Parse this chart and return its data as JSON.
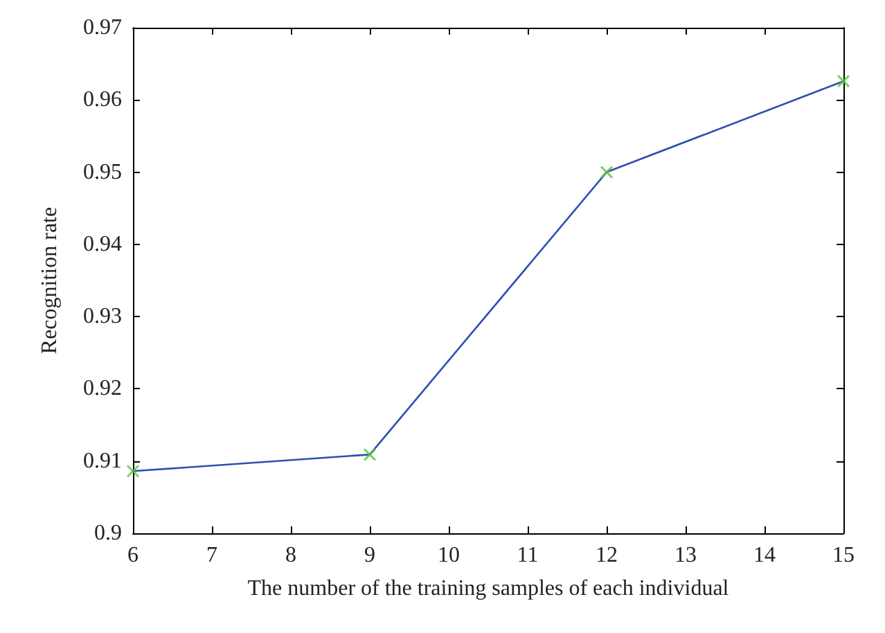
{
  "chart_data": {
    "type": "line",
    "xlabel": "The number of the training samples of each individual",
    "ylabel": "Recognition rate",
    "x": [
      6,
      9,
      12,
      15
    ],
    "series": [
      {
        "color": "#2e4fb0",
        "values": [
          0.9086,
          0.9109,
          0.95,
          0.9626
        ],
        "marker": "none"
      },
      {
        "type": "scatter",
        "color": "#5ac43a",
        "values": [
          0.9086,
          0.9109,
          0.95,
          0.9626
        ],
        "marker": "cross"
      }
    ],
    "xlim": [
      6,
      15
    ],
    "xticks": [
      6,
      7,
      8,
      9,
      10,
      11,
      12,
      13,
      14,
      15
    ],
    "ylim": [
      0.9,
      0.97
    ],
    "yticks": [
      {
        "value": 0.9,
        "label": "0.9"
      },
      0.91,
      0.92,
      0.93,
      0.94,
      0.95,
      0.96,
      0.97
    ],
    "grid": false,
    "line_style": "solid"
  }
}
